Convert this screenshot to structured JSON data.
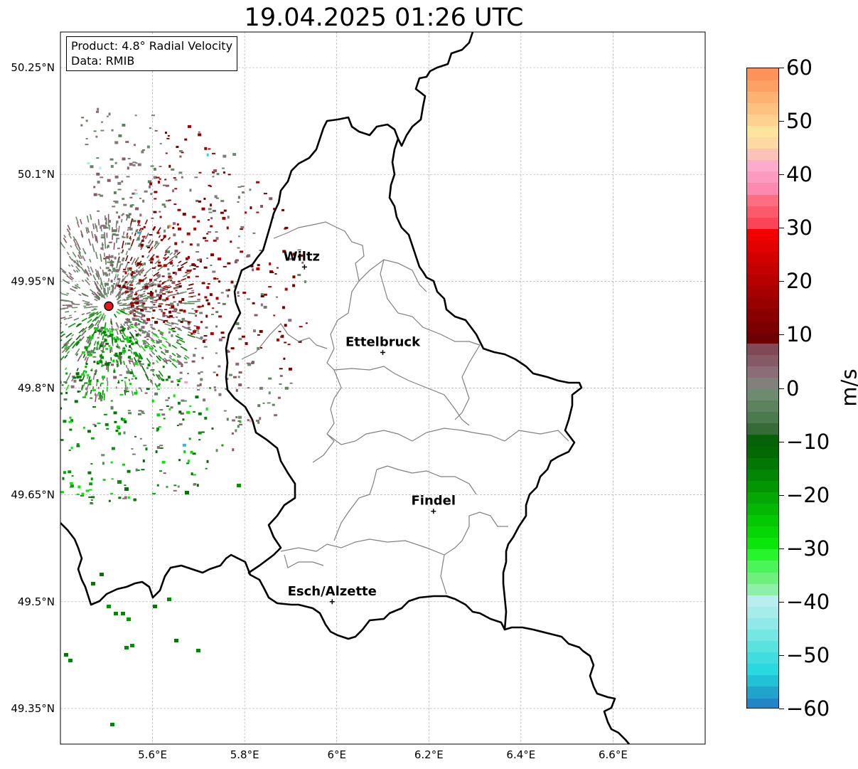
{
  "title": "19.04.2025 01:26 UTC",
  "info": {
    "product": "Product: 4.8° Radial Velocity",
    "data_source": "Data: RMIB"
  },
  "map": {
    "lat_ticks": [
      "50.25°N",
      "50.1°N",
      "49.95°N",
      "49.8°N",
      "49.65°N",
      "49.5°N",
      "49.35°N"
    ],
    "lon_ticks": [
      "5.6°E",
      "5.8°E",
      "6°E",
      "6.2°E",
      "6.4°E",
      "6.6°E"
    ],
    "cities": [
      {
        "name": "Wiltz",
        "lon": 5.93,
        "lat": 49.97
      },
      {
        "name": "Ettelbruck",
        "lon": 6.1,
        "lat": 49.85
      },
      {
        "name": "Findel",
        "lon": 6.21,
        "lat": 49.627
      },
      {
        "name": "Esch/Alzette",
        "lon": 5.99,
        "lat": 49.5
      }
    ],
    "radar_site": {
      "lon": 5.505,
      "lat": 49.915,
      "color": "#e41a1c"
    },
    "colors": {
      "border": "#000000",
      "canton_lines": "#808080",
      "grid": "#b0b0b0"
    }
  },
  "colorbar": {
    "unit": "m/s",
    "range": [
      -60,
      60
    ],
    "ticks": [
      "60",
      "50",
      "40",
      "30",
      "20",
      "10",
      "0",
      "−10",
      "−20",
      "−30",
      "−40",
      "−50",
      "−60"
    ],
    "tick_values": [
      60,
      50,
      40,
      30,
      20,
      10,
      0,
      -10,
      -20,
      -30,
      -40,
      -50,
      -60
    ],
    "colors_bottom_to_top": [
      "#2185c6",
      "#21a4cb",
      "#22c1d6",
      "#2ad8e0",
      "#3fdddf",
      "#58e2e0",
      "#74e6e4",
      "#8ee9e8",
      "#a6ece9",
      "#b8eef0",
      "#8ef0a8",
      "#6ff07e",
      "#4cf35a",
      "#25f52a",
      "#0ae60a",
      "#06d606",
      "#05c805",
      "#04b704",
      "#04a704",
      "#039603",
      "#038603",
      "#037703",
      "#036903",
      "#056205",
      "#366b37",
      "#4b7a4c",
      "#5d835e",
      "#6d8b6e",
      "#82807a",
      "#8a6d76",
      "#855a66",
      "#7f4a55",
      "#6d0000",
      "#7c0000",
      "#8a0000",
      "#990000",
      "#a80000",
      "#b70000",
      "#c60000",
      "#d40000",
      "#e30000",
      "#f20000",
      "#fc4458",
      "#fc5a6a",
      "#fc6f80",
      "#fc8ab0",
      "#fc9ac0",
      "#fcacc8",
      "#fcc2b8",
      "#fdd9a4",
      "#fde69c",
      "#fdd28e",
      "#fdc280",
      "#fdb272",
      "#fda064",
      "#fd9358"
    ]
  }
}
